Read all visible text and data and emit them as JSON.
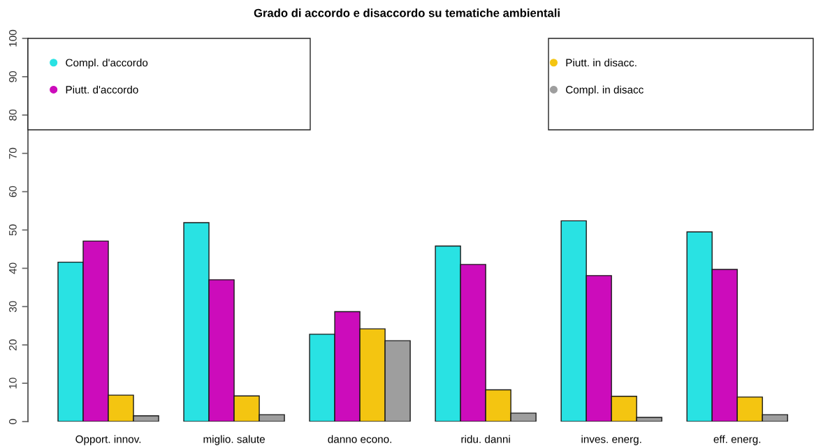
{
  "chart_data": {
    "type": "bar",
    "title": "Grado di accordo e disaccordo su tematiche ambientali",
    "categories": [
      "Opport. innov.",
      "miglio. salute",
      "danno econo.",
      "ridu. danni",
      "inves. energ.",
      "eff. energ."
    ],
    "series": [
      {
        "name": "Compl. d'accordo",
        "color": "#29e2e3",
        "values": [
          41.6,
          51.9,
          22.8,
          45.8,
          52.4,
          49.5
        ]
      },
      {
        "name": "Piutt. d'accordo",
        "color": "#cc0cbb",
        "values": [
          47.1,
          37.0,
          28.7,
          41.0,
          38.1,
          39.7
        ]
      },
      {
        "name": "Piutt. in disacc.",
        "color": "#f4c511",
        "values": [
          6.9,
          6.7,
          24.2,
          8.3,
          6.6,
          6.4
        ]
      },
      {
        "name": "Compl. in disacc",
        "color": "#9e9e9e",
        "values": [
          1.5,
          1.8,
          21.1,
          2.2,
          1.1,
          1.8
        ]
      }
    ],
    "ylim": [
      0,
      100
    ],
    "yticks": [
      0,
      10,
      20,
      30,
      40,
      50,
      60,
      70,
      80,
      90,
      100
    ],
    "legend": "top",
    "grid": false
  }
}
